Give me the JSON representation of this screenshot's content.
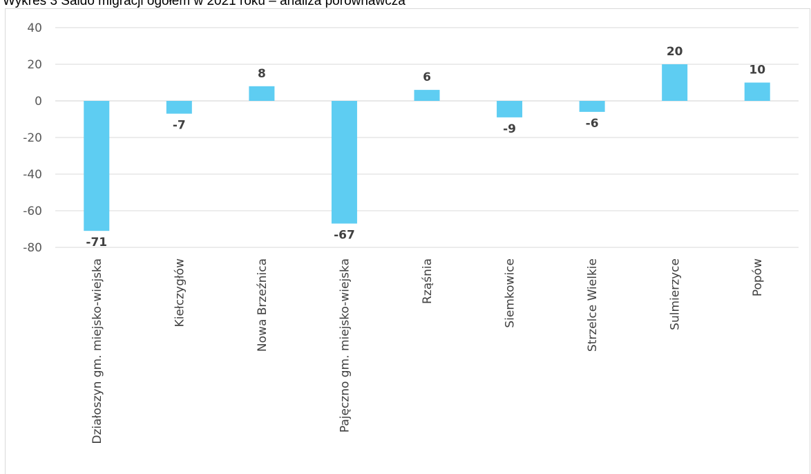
{
  "chart_data": {
    "type": "bar",
    "title": "Wykres 3 Saldo migracji ogółem w 2021 roku – analiza porównawcza",
    "categories": [
      "Działoszyn gm. miejsko-wiejska",
      "Kiełczygłów",
      "Nowa Brzeźnica",
      "Pajęczno gm. miejsko-wiejska",
      "Rząśnia",
      "Siemkowice",
      "Strzelce Wielkie",
      "Sulmierzyce",
      "Popów"
    ],
    "values": [
      -71,
      -7,
      8,
      -67,
      6,
      -9,
      -6,
      20,
      10
    ],
    "data_labels": [
      "-71",
      "-7",
      "8",
      "-67",
      "6",
      "-9",
      "-6",
      "20",
      "10"
    ],
    "yticks": [
      40,
      20,
      0,
      -20,
      -40,
      -60,
      -80
    ],
    "ytick_labels": [
      "40",
      "20",
      "0",
      "-20",
      "-40",
      "-60",
      "-80"
    ],
    "ylim": [
      -80,
      40
    ],
    "xlabel": "",
    "ylabel": "",
    "grid": true,
    "legend": "none",
    "bar_color": "#5ecdf2",
    "grid_color": "#d9d9d9",
    "label_color": "#404040"
  }
}
